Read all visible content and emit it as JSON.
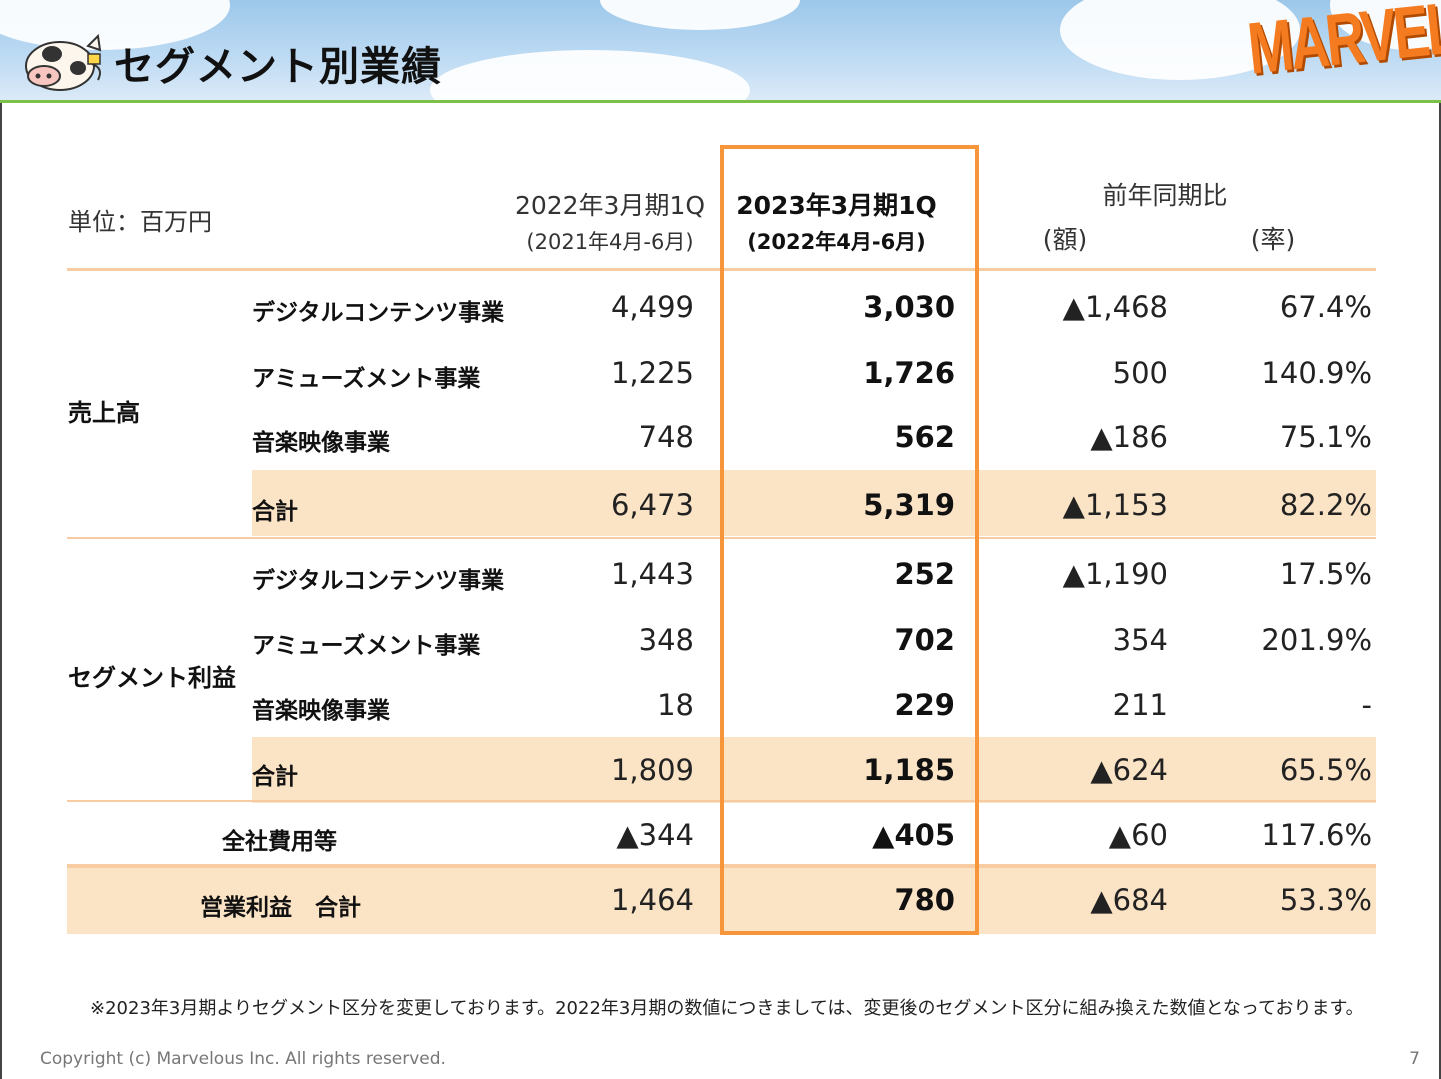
{
  "header": {
    "title": "セグメント別業績",
    "logo_text": "MARVELOUS!",
    "accent_color": "#f7953b",
    "header_line_color": "#7cc04a"
  },
  "table": {
    "unit_label": "単位：百万円",
    "columns": {
      "prev": {
        "label": "2022年3月期1Q",
        "sub": "(2021年4月-6月)"
      },
      "curr": {
        "label": "2023年3月期1Q",
        "sub": "(2022年4月-6月)"
      },
      "yoy": {
        "label": "前年同期比",
        "amount": "(額)",
        "rate": "(率)"
      }
    },
    "groups": [
      {
        "category": "売上高",
        "rows": [
          {
            "label": "デジタルコンテンツ事業",
            "prev": "4,499",
            "curr": "3,030",
            "diff": "▲1,468",
            "rate": "67.4%"
          },
          {
            "label": "アミューズメント事業",
            "prev": "1,225",
            "curr": "1,726",
            "diff": "500",
            "rate": "140.9%"
          },
          {
            "label": "音楽映像事業",
            "prev": "748",
            "curr": "562",
            "diff": "▲186",
            "rate": "75.1%"
          },
          {
            "label": "合計",
            "prev": "6,473",
            "curr": "5,319",
            "diff": "▲1,153",
            "rate": "82.2%"
          }
        ]
      },
      {
        "category": "セグメント利益",
        "rows": [
          {
            "label": "デジタルコンテンツ事業",
            "prev": "1,443",
            "curr": "252",
            "diff": "▲1,190",
            "rate": "17.5%"
          },
          {
            "label": "アミューズメント事業",
            "prev": "348",
            "curr": "702",
            "diff": "354",
            "rate": "201.9%"
          },
          {
            "label": "音楽映像事業",
            "prev": "18",
            "curr": "229",
            "diff": "211",
            "rate": "-"
          },
          {
            "label": "合計",
            "prev": "1,809",
            "curr": "1,185",
            "diff": "▲624",
            "rate": "65.5%"
          }
        ]
      }
    ],
    "corporate": {
      "label": "全社費用等",
      "prev": "▲344",
      "curr": "▲405",
      "diff": "▲60",
      "rate": "117.6%"
    },
    "operating": {
      "label": "営業利益　合計",
      "prev": "1,464",
      "curr": "780",
      "diff": "▲684",
      "rate": "53.3%"
    }
  },
  "footnote": "※2023年3月期よりセグメント区分を変更しております。2022年3月期の数値につきましては、変更後のセグメント区分に組み換えた数値となっております。",
  "footer": {
    "copyright": "Copyright (c) Marvelous Inc. All rights reserved.",
    "page_number": "7"
  }
}
